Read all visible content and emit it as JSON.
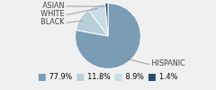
{
  "chart_data": {
    "type": "pie",
    "categories": [
      "HISPANIC",
      "BLACK",
      "WHITE",
      "ASIAN"
    ],
    "values": [
      77.9,
      11.8,
      8.9,
      1.4
    ],
    "value_labels": [
      "77.9%",
      "11.8%",
      "8.9%",
      "1.4%"
    ],
    "colors": [
      "#7a9db5",
      "#b8cfd8",
      "#c8dce5",
      "#2e4a6b"
    ],
    "legend": "bottom"
  }
}
